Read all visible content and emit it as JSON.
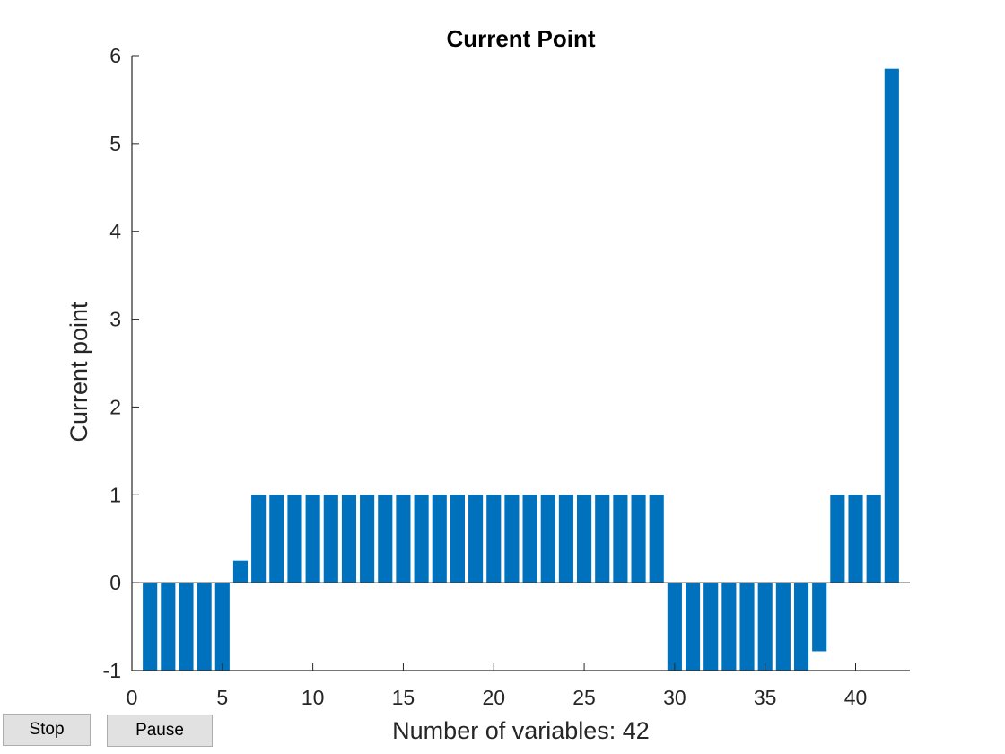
{
  "chart_data": {
    "type": "bar",
    "title": "Current Point",
    "xlabel": "Number of variables: 42",
    "ylabel": "Current point",
    "x": [
      1,
      2,
      3,
      4,
      5,
      6,
      7,
      8,
      9,
      10,
      11,
      12,
      13,
      14,
      15,
      16,
      17,
      18,
      19,
      20,
      21,
      22,
      23,
      24,
      25,
      26,
      27,
      28,
      29,
      30,
      31,
      32,
      33,
      34,
      35,
      36,
      37,
      38,
      39,
      40,
      41,
      42
    ],
    "values": [
      -1,
      -1,
      -1,
      -1,
      -1,
      0.25,
      1,
      1,
      1,
      1,
      1,
      1,
      1,
      1,
      1,
      1,
      1,
      1,
      1,
      1,
      1,
      1,
      1,
      1,
      1,
      1,
      1,
      1,
      1,
      -1,
      -1,
      -1,
      -1,
      -1,
      -1,
      -1,
      -1,
      -0.78,
      1,
      1,
      1,
      5.85
    ],
    "xlim": [
      0,
      43
    ],
    "ylim": [
      -1,
      6
    ],
    "xticks": [
      0,
      5,
      10,
      15,
      20,
      25,
      30,
      35,
      40
    ],
    "yticks": [
      -1,
      0,
      1,
      2,
      3,
      4,
      5,
      6
    ],
    "bar_color": "#0072BD",
    "grid": false
  },
  "buttons": {
    "stop_label": "Stop",
    "pause_label": "Pause"
  }
}
